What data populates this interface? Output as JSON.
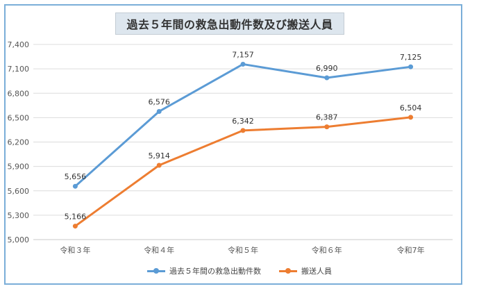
{
  "title": "過去５年間の救急出動件数及び搬送人員",
  "chart_data": {
    "type": "line",
    "title": "過去５年間の救急出動件数及び搬送人員",
    "categories": [
      "令和３年",
      "令和４年",
      "令和５年",
      "令和６年",
      "令和7年"
    ],
    "ylim": [
      5000,
      7400
    ],
    "yticks": [
      5000,
      5300,
      5600,
      5900,
      6200,
      6500,
      6800,
      7100,
      7400
    ],
    "ytick_labels": [
      "5,000",
      "5,300",
      "5,600",
      "5,900",
      "6,200",
      "6,500",
      "6,800",
      "7,100",
      "7,400"
    ],
    "grid": true,
    "legend_position": "bottom",
    "series": [
      {
        "name": "過去５年間の救急出動件数",
        "color": "#5b9bd5",
        "values": [
          5656,
          6576,
          7157,
          6990,
          7125
        ],
        "labels": [
          "5,656",
          "6,576",
          "7,157",
          "6,990",
          "7,125"
        ]
      },
      {
        "name": "搬送人員",
        "color": "#ed7d31",
        "values": [
          5166,
          5914,
          6342,
          6387,
          6504
        ],
        "labels": [
          "5,166",
          "5,914",
          "6,342",
          "6,387",
          "6,504"
        ]
      }
    ]
  }
}
